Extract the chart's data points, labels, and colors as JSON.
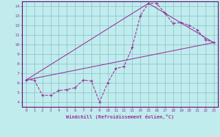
{
  "xlabel": "Windchill (Refroidissement éolien,°C)",
  "bg_color": "#c0ecee",
  "grid_color": "#90c4cc",
  "line_color": "#993399",
  "axis_color": "#660066",
  "xlim": [
    -0.5,
    23.5
  ],
  "ylim": [
    3.5,
    14.5
  ],
  "xticks": [
    0,
    1,
    2,
    3,
    4,
    5,
    6,
    7,
    8,
    9,
    10,
    11,
    12,
    13,
    14,
    15,
    16,
    17,
    18,
    19,
    20,
    21,
    22,
    23
  ],
  "yticks": [
    4,
    5,
    6,
    7,
    8,
    9,
    10,
    11,
    12,
    13,
    14
  ],
  "line1_x": [
    0,
    1,
    2,
    3,
    4,
    5,
    6,
    7,
    8,
    9,
    10,
    11,
    12,
    13,
    14,
    15,
    16,
    17,
    18,
    19,
    20,
    21,
    22,
    23
  ],
  "line1_y": [
    6.3,
    6.3,
    4.7,
    4.7,
    5.2,
    5.3,
    5.5,
    6.3,
    6.2,
    4.0,
    6.0,
    7.5,
    7.7,
    9.7,
    13.0,
    14.3,
    14.3,
    13.3,
    12.2,
    12.3,
    12.0,
    11.5,
    10.5,
    10.2
  ],
  "line2_x": [
    0,
    23
  ],
  "line2_y": [
    6.3,
    10.2
  ],
  "line3_x": [
    0,
    15,
    23
  ],
  "line3_y": [
    6.3,
    14.3,
    10.2
  ]
}
